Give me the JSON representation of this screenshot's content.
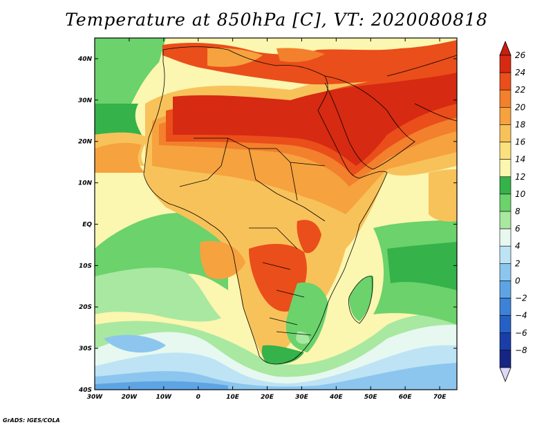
{
  "title": "Temperature at 850hPa [C], VT: 2020080818",
  "credit": "GrADS: IGES/COLA",
  "map": {
    "lon_range": [
      -30,
      75
    ],
    "lat_range": [
      -40,
      45
    ],
    "lat_ticks": [
      {
        "lat": 40,
        "label": "40N"
      },
      {
        "lat": 30,
        "label": "30N"
      },
      {
        "lat": 20,
        "label": "20N"
      },
      {
        "lat": 10,
        "label": "10N"
      },
      {
        "lat": 0,
        "label": "EQ"
      },
      {
        "lat": -10,
        "label": "10S"
      },
      {
        "lat": -20,
        "label": "20S"
      },
      {
        "lat": -30,
        "label": "30S"
      },
      {
        "lat": -40,
        "label": "40S"
      }
    ],
    "lon_ticks": [
      {
        "lon": -30,
        "label": "30W"
      },
      {
        "lon": -20,
        "label": "20W"
      },
      {
        "lon": -10,
        "label": "10W"
      },
      {
        "lon": 0,
        "label": "0"
      },
      {
        "lon": 10,
        "label": "10E"
      },
      {
        "lon": 20,
        "label": "20E"
      },
      {
        "lon": 30,
        "label": "30E"
      },
      {
        "lon": 40,
        "label": "40E"
      },
      {
        "lon": 50,
        "label": "50E"
      },
      {
        "lon": 60,
        "label": "60E"
      },
      {
        "lon": 70,
        "label": "70E"
      }
    ]
  },
  "colorbar": {
    "levels": [
      {
        "label": "26",
        "color": "#d62a12"
      },
      {
        "label": "24",
        "color": "#ea4e1a"
      },
      {
        "label": "22",
        "color": "#f2802c"
      },
      {
        "label": "20",
        "color": "#f5a23f"
      },
      {
        "label": "18",
        "color": "#f8c25a"
      },
      {
        "label": "16",
        "color": "#fbe07e"
      },
      {
        "label": "14",
        "color": "#fbf6b0"
      },
      {
        "label": "12",
        "color": "#35b24a"
      },
      {
        "label": "10",
        "color": "#6bd26c"
      },
      {
        "label": "8",
        "color": "#a8e8a0"
      },
      {
        "label": "6",
        "color": "#e6f8f0"
      },
      {
        "label": "4",
        "color": "#bde3f5"
      },
      {
        "label": "2",
        "color": "#8cc6ee"
      },
      {
        "label": "0",
        "color": "#5ea4e4"
      },
      {
        "label": "−2",
        "color": "#3c82d8"
      },
      {
        "label": "−4",
        "color": "#2560c4"
      },
      {
        "label": "−6",
        "color": "#1a3ea8"
      },
      {
        "label": "−8",
        "color": "#152584"
      }
    ],
    "top_arrow_color": "#c81e10",
    "bottom_arrow_color": "#dcd8f5"
  }
}
